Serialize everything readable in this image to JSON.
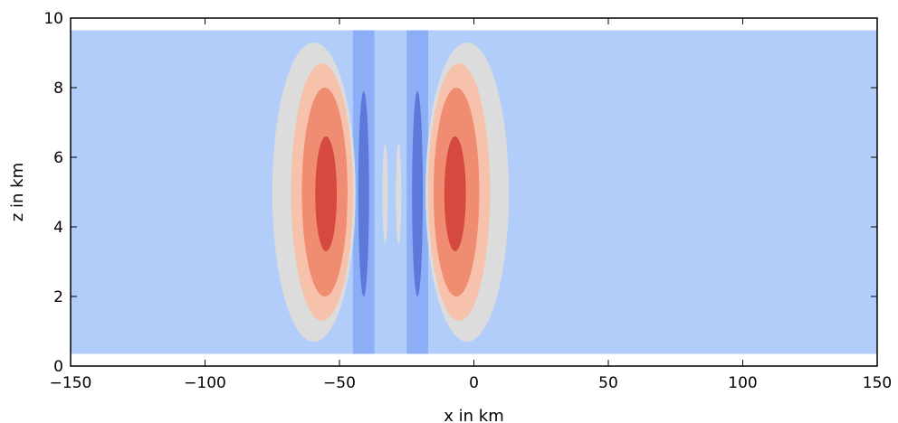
{
  "chart_data": {
    "type": "heatmap",
    "title": "",
    "xlabel": "x in km",
    "ylabel": "z in km",
    "xlim": [
      -150,
      150
    ],
    "ylim": [
      0,
      10
    ],
    "x_ticks": [
      -150,
      -100,
      -50,
      0,
      50,
      100,
      150
    ],
    "y_ticks": [
      0,
      2,
      4,
      6,
      8,
      10
    ],
    "x_tick_labels": [
      "−150",
      "−100",
      "−50",
      "0",
      "50",
      "100",
      "150"
    ],
    "y_tick_labels": [
      "0",
      "2",
      "4",
      "6",
      "8",
      "10"
    ],
    "grid": false,
    "colormap": "coolwarm",
    "colors": {
      "background_level": "#b3cdfa",
      "band_level": "#8caef6",
      "strong_negative": "#5b79d9",
      "neutral": "#dcdcdc",
      "weak_positive": "#f6c2ab",
      "mid_positive": "#ef8c71",
      "strong_positive": "#d5493e"
    },
    "field_extent": {
      "x": [
        -150,
        150
      ],
      "z": [
        0.35,
        9.65
      ]
    },
    "vertical_bands": [
      {
        "x": [
          -45,
          -37
        ],
        "z": [
          0.35,
          9.65
        ],
        "level": "band_level"
      },
      {
        "x": [
          -25,
          -17
        ],
        "z": [
          0.35,
          9.65
        ],
        "level": "band_level"
      }
    ],
    "contour_cells": [
      {
        "center": [
          -55,
          5.0
        ],
        "levels": [
          {
            "level": "neutral",
            "x": [
              -75,
              -44
            ],
            "z": [
              0.7,
              9.3
            ]
          },
          {
            "level": "weak_positive",
            "x": [
              -68,
              -45
            ],
            "z": [
              1.3,
              8.7
            ]
          },
          {
            "level": "mid_positive",
            "x": [
              -64,
              -47
            ],
            "z": [
              2.0,
              8.0
            ]
          },
          {
            "level": "strong_positive",
            "x": [
              -59,
              -51
            ],
            "z": [
              3.3,
              6.6
            ]
          }
        ]
      },
      {
        "center": [
          -7,
          5.0
        ],
        "levels": [
          {
            "level": "neutral",
            "x": [
              -18,
              13
            ],
            "z": [
              0.7,
              9.3
            ]
          },
          {
            "level": "weak_positive",
            "x": [
              -17,
              6
            ],
            "z": [
              1.3,
              8.7
            ]
          },
          {
            "level": "mid_positive",
            "x": [
              -15,
              2
            ],
            "z": [
              2.0,
              8.0
            ]
          },
          {
            "level": "strong_positive",
            "x": [
              -11,
              -3
            ],
            "z": [
              3.3,
              6.6
            ]
          }
        ]
      }
    ],
    "negative_cells": [
      {
        "level": "strong_negative",
        "x": [
          -43,
          -39
        ],
        "z": [
          2.0,
          7.9
        ]
      },
      {
        "level": "strong_negative",
        "x": [
          -23,
          -19
        ],
        "z": [
          2.0,
          7.9
        ]
      }
    ],
    "neutral_slivers": [
      {
        "level": "neutral",
        "x": [
          -34,
          -32
        ],
        "z": [
          3.5,
          6.4
        ]
      },
      {
        "level": "neutral",
        "x": [
          -29,
          -27
        ],
        "z": [
          3.5,
          6.4
        ]
      }
    ]
  }
}
